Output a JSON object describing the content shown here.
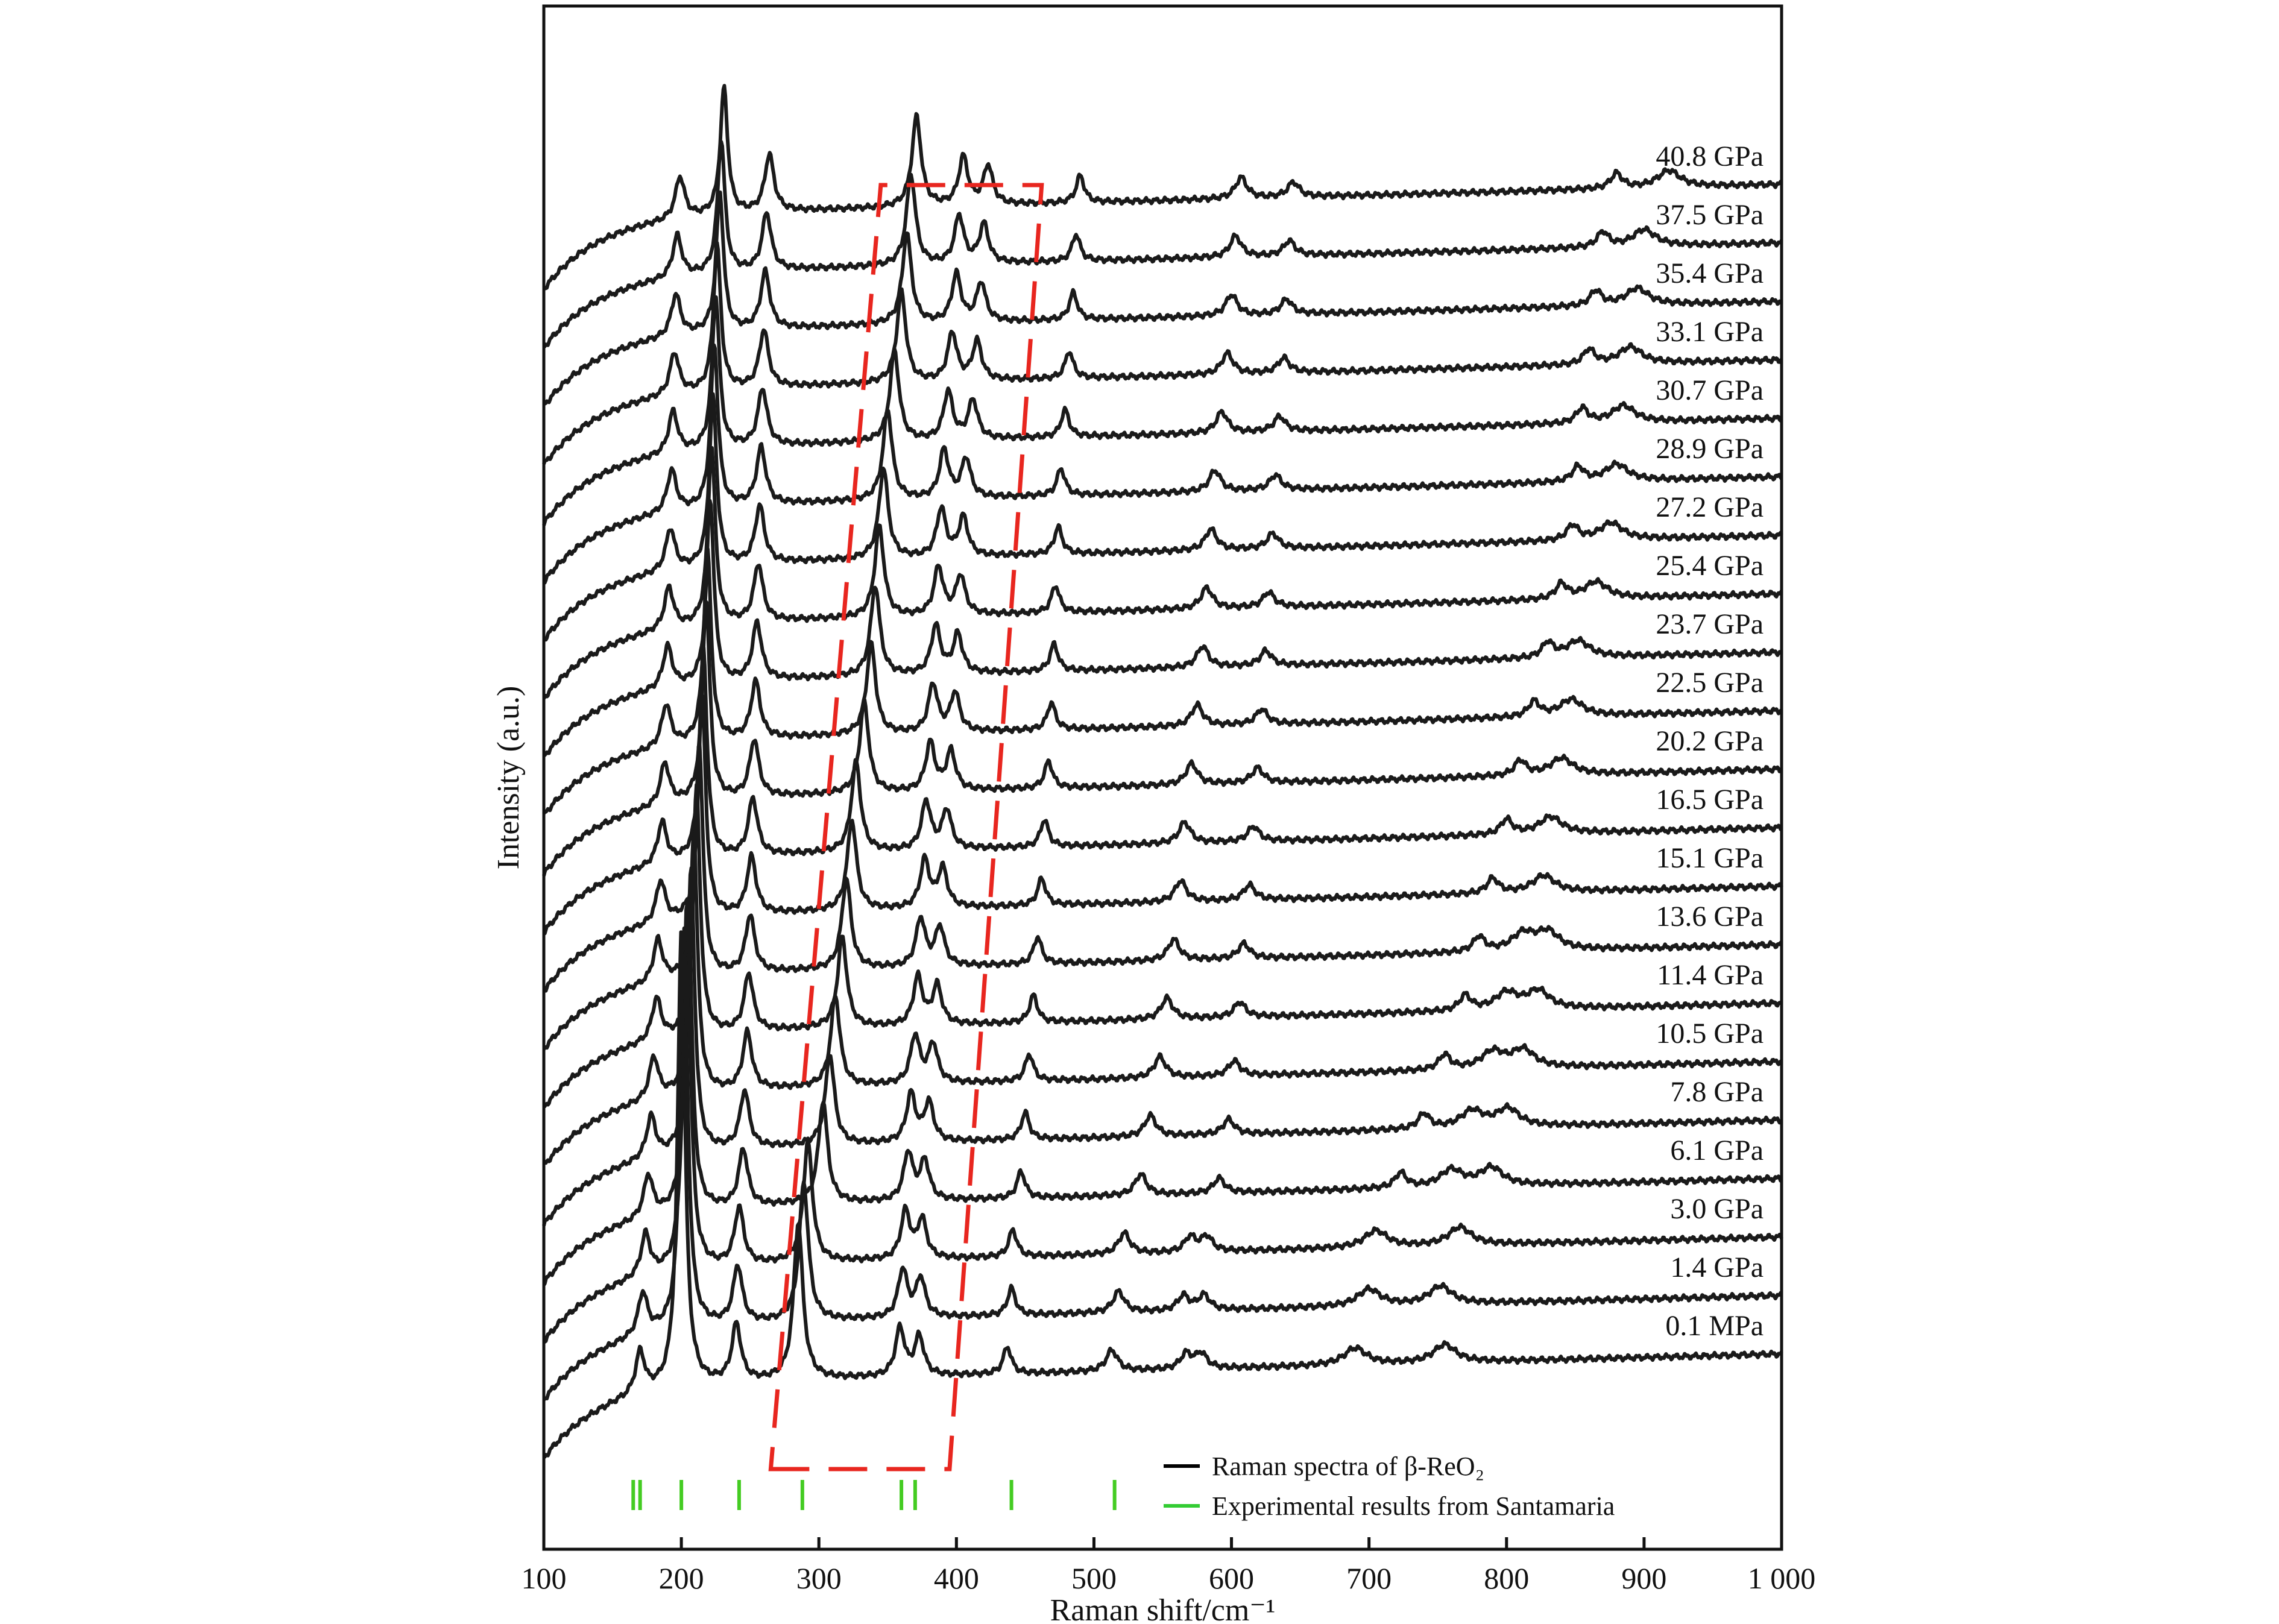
{
  "chart_data": {
    "type": "line",
    "xlabel": "Raman shift/cm⁻¹",
    "ylabel": "Intensity (a.u.)",
    "xlim": [
      100,
      1000
    ],
    "xticks": [
      100,
      200,
      300,
      400,
      500,
      600,
      700,
      800,
      900,
      1000
    ],
    "xtick_labels": [
      "100",
      "200",
      "300",
      "400",
      "500",
      "600",
      "700",
      "800",
      "900",
      "1 000"
    ],
    "grid": false,
    "legend_position": "bottom-right",
    "legend": [
      {
        "label": "Raman spectra of β-ReO₂",
        "color": "#000000"
      },
      {
        "label": "Experimental results from Santamaria",
        "color": "#33cc33"
      }
    ],
    "series_color": "#1a1a1a",
    "reference_color": "#44cc22",
    "highlight_box_color": "#e8261f",
    "reference_peaks": [
      165,
      170,
      200,
      242,
      288,
      360,
      370,
      440,
      515
    ],
    "highlight_region": {
      "bottom_left": 265,
      "bottom_right": 395,
      "top_left": 345,
      "top_right": 462
    },
    "series": [
      {
        "name": "0.1 MPa",
        "peaks": [
          170,
          200,
          240,
          285,
          359,
          373,
          437,
          513,
          567,
          578,
          690,
          755
        ]
      },
      {
        "name": "1.4 GPa",
        "peaks": [
          172,
          202,
          241,
          289,
          361,
          374,
          440,
          518,
          565,
          580,
          700,
          752
        ]
      },
      {
        "name": "3.0 GPa",
        "peaks": [
          174,
          204,
          242,
          292,
          363,
          375,
          441,
          522,
          570,
          582,
          705,
          766
        ]
      },
      {
        "name": "6.1 GPa",
        "peaks": [
          176,
          205,
          245,
          303,
          365,
          377,
          447,
          534,
          591,
          723,
          760,
          789
        ]
      },
      {
        "name": "7.8 GPa",
        "peaks": [
          178,
          207,
          246,
          308,
          367,
          380,
          450,
          541,
          598,
          740,
          775,
          801
        ]
      },
      {
        "name": "10.5 GPa",
        "peaks": [
          180,
          209,
          248,
          312,
          370,
          383,
          453,
          548,
          602,
          755,
          790,
          812
        ]
      },
      {
        "name": "11.4 GPa",
        "peaks": [
          182,
          211,
          249,
          317,
          372,
          386,
          456,
          553,
          606,
          770,
          800,
          823
        ]
      },
      {
        "name": "13.6 GPa",
        "peaks": [
          183,
          213,
          250,
          320,
          374,
          388,
          459,
          558,
          609,
          780,
          812,
          830
        ]
      },
      {
        "name": "15.1 GPa",
        "peaks": [
          185,
          215,
          251,
          324,
          377,
          390,
          462,
          563,
          613,
          790,
          827
        ]
      },
      {
        "name": "16.5 GPa",
        "peaks": [
          186,
          216,
          252,
          327,
          378,
          393,
          464,
          566,
          616,
          800,
          832
        ]
      },
      {
        "name": "20.2 GPa",
        "peaks": [
          188,
          218,
          253,
          333,
          381,
          396,
          467,
          571,
          619,
          810,
          840
        ]
      },
      {
        "name": "22.5 GPa",
        "peaks": [
          189,
          219,
          254,
          338,
          383,
          399,
          469,
          575,
          622,
          820,
          847
        ]
      },
      {
        "name": "23.7 GPa",
        "peaks": [
          190,
          221,
          255,
          341,
          385,
          401,
          471,
          579,
          625,
          830,
          852
        ]
      },
      {
        "name": "25.4 GPa",
        "peaks": [
          191,
          222,
          256,
          344,
          387,
          403,
          472,
          582,
          627,
          840,
          865
        ]
      },
      {
        "name": "27.2 GPa",
        "peaks": [
          192,
          223,
          257,
          347,
          389,
          405,
          474,
          585,
          630,
          848,
          876
        ]
      },
      {
        "name": "28.9 GPa",
        "peaks": [
          193,
          224,
          258,
          350,
          391,
          407,
          476,
          588,
          632,
          852,
          880
        ]
      },
      {
        "name": "30.7 GPa",
        "peaks": [
          194,
          225,
          259,
          355,
          394,
          412,
          479,
          593,
          635,
          855,
          885
        ]
      },
      {
        "name": "33.1 GPa",
        "peaks": [
          195,
          226,
          260,
          360,
          397,
          415,
          482,
          597,
          638,
          860,
          890
        ]
      },
      {
        "name": "35.4 GPa",
        "peaks": [
          196,
          228,
          261,
          364,
          400,
          418,
          485,
          600,
          640,
          865,
          895
        ]
      },
      {
        "name": "37.5 GPa",
        "peaks": [
          197,
          229,
          262,
          367,
          402,
          420,
          487,
          603,
          642,
          870,
          900
        ]
      },
      {
        "name": "40.8 GPa",
        "peaks": [
          199,
          231,
          264,
          371,
          405,
          423,
          490,
          607,
          645,
          880,
          918
        ]
      }
    ]
  }
}
